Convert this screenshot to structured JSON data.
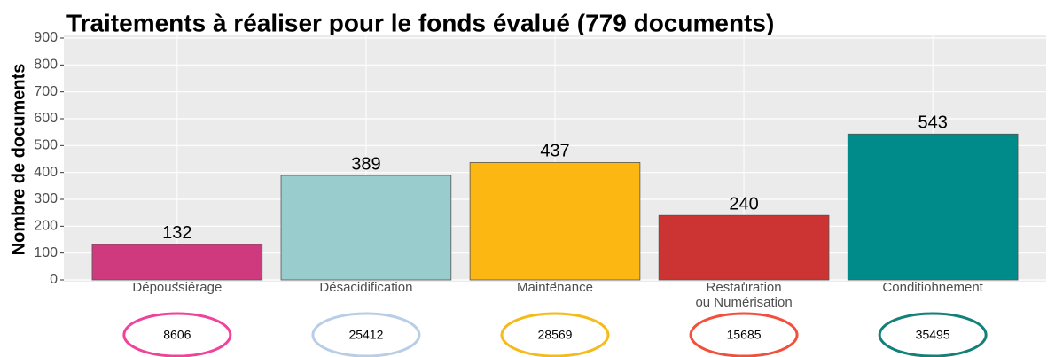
{
  "chart_data": {
    "type": "bar",
    "title": "Traitements à réaliser pour le fonds évalué (779 documents)",
    "y_label": "Nombre de documents",
    "categories": [
      "Dépoussiérage",
      "Désacidification",
      "Maintenance",
      "Restauration\nou Numérisation",
      "Conditionnement"
    ],
    "values": [
      132,
      389,
      437,
      240,
      543
    ],
    "colors": [
      "#cf3a7f",
      "#99cccc",
      "#fcb712",
      "#cc3333",
      "#008b8b"
    ],
    "ylim": [
      0,
      900
    ],
    "yticks": [
      0,
      100,
      200,
      300,
      400,
      500,
      600,
      700,
      800,
      900
    ],
    "grid": true,
    "circled_values": [
      8606,
      25412,
      28569,
      15685,
      35495
    ],
    "circle_colors": [
      "#f0449c",
      "#b8cde6",
      "#f5bb1a",
      "#f0503c",
      "#13807a"
    ]
  }
}
